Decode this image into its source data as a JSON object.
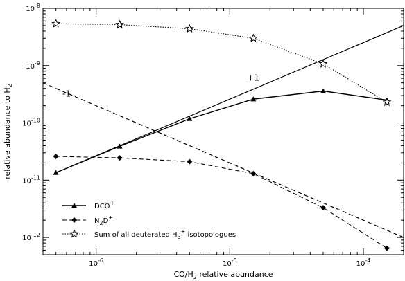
{
  "chart_data": {
    "type": "line",
    "xlabel": {
      "base": "CO/H",
      "sub": "2",
      "rest": " relative abundance"
    },
    "ylabel": {
      "base": "relative abundance to H",
      "sub": "2"
    },
    "xscale": "log",
    "yscale": "log",
    "xlim": [
      4e-07,
      0.0002
    ],
    "ylim": [
      5e-13,
      1e-08
    ],
    "x_ticks": [
      {
        "value": 1e-06,
        "base": "10",
        "exp": "-6"
      },
      {
        "value": 1e-05,
        "base": "10",
        "exp": "-5"
      },
      {
        "value": 0.0001,
        "base": "10",
        "exp": "-4"
      }
    ],
    "y_ticks": [
      {
        "value": 1e-12,
        "base": "10",
        "exp": "-12"
      },
      {
        "value": 1e-11,
        "base": "10",
        "exp": "-11"
      },
      {
        "value": 1e-10,
        "base": "10",
        "exp": "-10"
      },
      {
        "value": 1e-09,
        "base": "10",
        "exp": "-9"
      },
      {
        "value": 1e-08,
        "base": "10",
        "exp": "-8"
      }
    ],
    "series": [
      {
        "name": "DCO+",
        "legend": {
          "base": "DCO",
          "sup": "+",
          "sub": "",
          "rest": ""
        },
        "line": "solid",
        "marker": "triangle",
        "x": [
          5e-07,
          1.5e-06,
          5e-06,
          1.5e-05,
          5e-05,
          0.00015
        ],
        "y": [
          1.35e-11,
          3.9e-11,
          1.18e-10,
          2.6e-10,
          3.6e-10,
          2.5e-10
        ]
      },
      {
        "name": "N2D+",
        "legend": {
          "base": "N",
          "sub": "2",
          "mid": "D",
          "sup": "+",
          "rest": ""
        },
        "line": "dashed",
        "marker": "diamond",
        "x": [
          5e-07,
          1.5e-06,
          5e-06,
          1.5e-05,
          5e-05,
          0.00015
        ],
        "y": [
          2.6e-11,
          2.45e-11,
          2.1e-11,
          1.3e-11,
          3.3e-12,
          6.5e-13
        ]
      },
      {
        "name": "Sum of all deuterated H3+ isotopologues",
        "legend": {
          "base": "Sum of all deuterated H",
          "sub": "3",
          "sup": "+",
          "rest": " isotopologues"
        },
        "line": "dotted",
        "marker": "star",
        "x": [
          5e-07,
          1.5e-06,
          5e-06,
          1.5e-05,
          5e-05,
          0.00015
        ],
        "y": [
          5.4e-09,
          5.2e-09,
          4.4e-09,
          3e-09,
          1.07e-09,
          2.3e-10
        ]
      }
    ],
    "reference_lines": [
      {
        "label": "+1",
        "style": "solid",
        "x": [
          5e-07,
          0.0002
        ],
        "y": [
          1.35e-11,
          5e-09
        ]
      },
      {
        "label": "-1",
        "style": "dashed",
        "x": [
          4e-07,
          0.0002
        ],
        "y": [
          5e-10,
          1e-12
        ]
      }
    ],
    "legend_position": "bottom-left",
    "grid": false
  }
}
